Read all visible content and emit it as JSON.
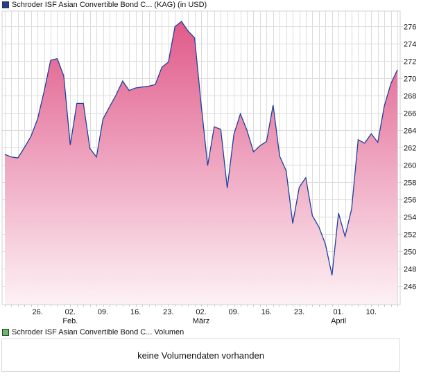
{
  "legend": {
    "price_label": "Schroder ISF Asian Convertible Bond C... (KAG) (in USD)",
    "price_color": "#1f3f9c",
    "volume_label": "Schroder ISF Asian Convertible Bond C... Volumen",
    "volume_color": "#5cc15c"
  },
  "volume_panel": {
    "message": "keine Volumendaten vorhanden"
  },
  "chart_data": {
    "type": "area",
    "title": "Schroder ISF Asian Convertible Bond C... (KAG) (in USD)",
    "xlabel": "",
    "ylabel": "",
    "ylim": [
      243.8,
      277.8
    ],
    "y_ticks": [
      246,
      248,
      250,
      252,
      254,
      256,
      258,
      260,
      262,
      264,
      266,
      268,
      270,
      272,
      274,
      276
    ],
    "x_ticks": [
      {
        "label": "26.",
        "sub": "",
        "index": 5
      },
      {
        "label": "02.",
        "sub": "Feb.",
        "index": 10
      },
      {
        "label": "09.",
        "sub": "",
        "index": 15
      },
      {
        "label": "16.",
        "sub": "",
        "index": 20
      },
      {
        "label": "23.",
        "sub": "",
        "index": 25
      },
      {
        "label": "02.",
        "sub": "März",
        "index": 30
      },
      {
        "label": "09.",
        "sub": "",
        "index": 35
      },
      {
        "label": "16.",
        "sub": "",
        "index": 40
      },
      {
        "label": "23.",
        "sub": "",
        "index": 45
      },
      {
        "label": "01.",
        "sub": "April",
        "index": 51
      },
      {
        "label": "10.",
        "sub": "",
        "index": 56
      }
    ],
    "grid": true,
    "line_color": "#1f3f9c",
    "fill_top_color": "#e05a8a",
    "fill_bottom_color": "#fdf1f5",
    "series": [
      {
        "name": "Schroder ISF Asian Convertible Bond C... (KAG) (in USD)",
        "values": [
          261.2,
          260.9,
          260.8,
          262.0,
          263.3,
          265.3,
          268.5,
          272.1,
          272.3,
          270.3,
          262.3,
          267.1,
          267.1,
          261.9,
          260.9,
          265.3,
          266.7,
          268.1,
          269.7,
          268.6,
          268.9,
          269.0,
          269.1,
          269.3,
          271.3,
          271.9,
          276.0,
          276.6,
          275.5,
          274.7,
          267.0,
          259.9,
          264.4,
          264.1,
          257.3,
          263.5,
          265.9,
          264.0,
          261.5,
          262.2,
          262.7,
          266.9,
          261.0,
          259.3,
          253.2,
          257.4,
          258.5,
          254.1,
          252.8,
          250.8,
          247.2,
          254.4,
          251.7,
          254.9,
          262.9,
          262.5,
          263.6,
          262.6,
          266.8,
          269.4,
          271.0
        ]
      }
    ]
  }
}
